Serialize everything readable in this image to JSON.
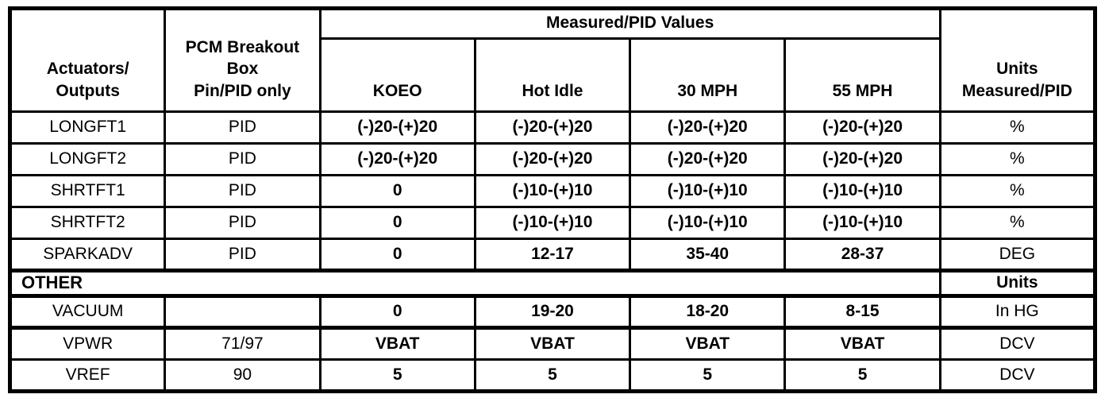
{
  "colors": {
    "border": "#000000",
    "text": "#000000",
    "background": "#ffffff"
  },
  "header": {
    "actuators": "Actuators/\nOutputs",
    "pcm_breakout": "PCM Breakout\nBox\nPin/PID only",
    "measured_group": "Measured/PID Values",
    "conditions": {
      "koeo": "KOEO",
      "hot_idle": "Hot Idle",
      "mph_30": "30 MPH",
      "mph_55": "55 MPH"
    },
    "units": "Units\nMeasured/PID"
  },
  "rows": [
    {
      "name": "LONGFT1",
      "pin": "PID",
      "values": [
        "(-)20-(+)20",
        "(-)20-(+)20",
        "(-)20-(+)20",
        "(-)20-(+)20"
      ],
      "units": "%"
    },
    {
      "name": "LONGFT2",
      "pin": "PID",
      "values": [
        "(-)20-(+)20",
        "(-)20-(+)20",
        "(-)20-(+)20",
        "(-)20-(+)20"
      ],
      "units": "%"
    },
    {
      "name": "SHRTFT1",
      "pin": "PID",
      "values": [
        "0",
        "(-)10-(+)10",
        "(-)10-(+)10",
        "(-)10-(+)10"
      ],
      "units": "%"
    },
    {
      "name": "SHRTFT2",
      "pin": "PID",
      "values": [
        "0",
        "(-)10-(+)10",
        "(-)10-(+)10",
        "(-)10-(+)10"
      ],
      "units": "%"
    },
    {
      "name": "SPARKADV",
      "pin": "PID",
      "values": [
        "0",
        "12-17",
        "35-40",
        "28-37"
      ],
      "units": "DEG"
    }
  ],
  "section_other": {
    "label": "OTHER",
    "units_header": "Units"
  },
  "other_rows": [
    {
      "name": "VACUUM",
      "pin": "",
      "values": [
        "0",
        "19-20",
        "18-20",
        "8-15"
      ],
      "units": "In HG"
    },
    {
      "name": "VPWR",
      "pin": "71/97",
      "values": [
        "VBAT",
        "VBAT",
        "VBAT",
        "VBAT"
      ],
      "units": "DCV"
    },
    {
      "name": "VREF",
      "pin": "90",
      "values": [
        "5",
        "5",
        "5",
        "5"
      ],
      "units": "DCV"
    }
  ]
}
